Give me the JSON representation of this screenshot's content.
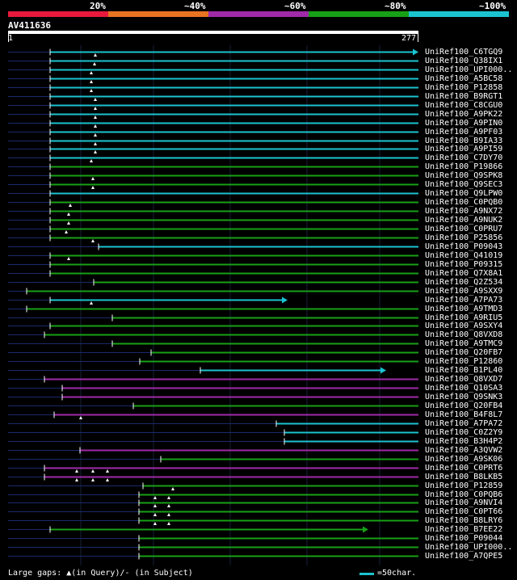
{
  "legend": {
    "colors": [
      "#e8193c",
      "#e87322",
      "#a02aa7",
      "#18a016",
      "#1bc3d0"
    ],
    "labels": [
      "20%",
      "~40%",
      "~60%",
      "~80%",
      "~100%"
    ]
  },
  "query": {
    "name": "AV411636",
    "start": "1",
    "end": "277"
  },
  "hits": [
    {
      "name": "UniRef100_C6TGQ9",
      "start": 62,
      "end": 518,
      "color": "#1bc3d0",
      "arrow": true,
      "marks": [
        118
      ]
    },
    {
      "name": "UniRef100_Q38IX1",
      "start": 62,
      "end": 518,
      "color": "#1bc3d0",
      "arrow": false,
      "marks": [
        117
      ]
    },
    {
      "name": "UniRef100_UPI000..",
      "start": 62,
      "end": 518,
      "color": "#1bc3d0",
      "arrow": false,
      "marks": [
        113
      ]
    },
    {
      "name": "UniRef100_A5BC58",
      "start": 62,
      "end": 518,
      "color": "#1bc3d0",
      "arrow": false,
      "marks": [
        113
      ]
    },
    {
      "name": "UniRef100_P12858",
      "start": 62,
      "end": 518,
      "color": "#1bc3d0",
      "arrow": false,
      "marks": [
        113
      ]
    },
    {
      "name": "UniRef100_B9RGT1",
      "start": 62,
      "end": 518,
      "color": "#1bc3d0",
      "arrow": false,
      "marks": [
        118
      ]
    },
    {
      "name": "UniRef100_C8CGU0",
      "start": 62,
      "end": 518,
      "color": "#1bc3d0",
      "arrow": false,
      "marks": [
        118
      ]
    },
    {
      "name": "UniRef100_A9PK22",
      "start": 62,
      "end": 518,
      "color": "#1bc3d0",
      "arrow": false,
      "marks": [
        118
      ]
    },
    {
      "name": "UniRef100_A9PIN0",
      "start": 62,
      "end": 518,
      "color": "#1bc3d0",
      "arrow": false,
      "marks": [
        118
      ]
    },
    {
      "name": "UniRef100_A9PF03",
      "start": 62,
      "end": 518,
      "color": "#1bc3d0",
      "arrow": false,
      "marks": [
        118
      ]
    },
    {
      "name": "UniRef100_B9IA33",
      "start": 62,
      "end": 518,
      "color": "#1bc3d0",
      "arrow": false,
      "marks": [
        118
      ]
    },
    {
      "name": "UniRef100_A9PI59",
      "start": 62,
      "end": 518,
      "color": "#1bc3d0",
      "arrow": false,
      "marks": [
        118
      ]
    },
    {
      "name": "UniRef100_C7DY70",
      "start": 62,
      "end": 518,
      "color": "#1bc3d0",
      "arrow": false,
      "marks": [
        113
      ]
    },
    {
      "name": "UniRef100_P19866",
      "start": 62,
      "end": 518,
      "color": "#18a016",
      "arrow": false,
      "marks": []
    },
    {
      "name": "UniRef100_Q9SPK8",
      "start": 62,
      "end": 518,
      "color": "#18a016",
      "arrow": false,
      "marks": [
        115
      ]
    },
    {
      "name": "UniRef100_Q9SEC3",
      "start": 62,
      "end": 518,
      "color": "#18a016",
      "arrow": false,
      "marks": [
        115
      ]
    },
    {
      "name": "UniRef100_Q9LPW0",
      "start": 62,
      "end": 518,
      "color": "#1bc3d0",
      "arrow": false,
      "marks": []
    },
    {
      "name": "UniRef100_C0PQB0",
      "start": 62,
      "end": 518,
      "color": "#18a016",
      "arrow": false,
      "marks": [
        87
      ]
    },
    {
      "name": "UniRef100_A9NX72",
      "start": 62,
      "end": 518,
      "color": "#18a016",
      "arrow": false,
      "marks": [
        85
      ]
    },
    {
      "name": "UniRef100_A9NUK2",
      "start": 62,
      "end": 518,
      "color": "#18a016",
      "arrow": false,
      "marks": [
        85
      ]
    },
    {
      "name": "UniRef100_C0PRU7",
      "start": 62,
      "end": 518,
      "color": "#18a016",
      "arrow": false,
      "marks": [
        82
      ]
    },
    {
      "name": "UniRef100_P25856",
      "start": 62,
      "end": 518,
      "color": "#18a016",
      "arrow": false,
      "marks": [
        115
      ]
    },
    {
      "name": "UniRef100_P09043",
      "start": 122,
      "end": 518,
      "color": "#1bc3d0",
      "arrow": false,
      "marks": []
    },
    {
      "name": "UniRef100_Q41019",
      "start": 62,
      "end": 518,
      "color": "#18a016",
      "arrow": false,
      "marks": [
        85
      ]
    },
    {
      "name": "UniRef100_P09315",
      "start": 62,
      "end": 518,
      "color": "#18a016",
      "arrow": false,
      "marks": []
    },
    {
      "name": "UniRef100_Q7X8A1",
      "start": 62,
      "end": 518,
      "color": "#18a016",
      "arrow": false,
      "marks": []
    },
    {
      "name": "UniRef100_Q2Z534",
      "start": 116,
      "end": 518,
      "color": "#18a016",
      "arrow": false,
      "marks": []
    },
    {
      "name": "UniRef100_A9SXX9",
      "start": 33,
      "end": 518,
      "color": "#18a016",
      "arrow": false,
      "marks": []
    },
    {
      "name": "UniRef100_A7PA73",
      "start": 62,
      "end": 356,
      "color": "#1bc3d0",
      "arrow": true,
      "marks": [
        113
      ]
    },
    {
      "name": "UniRef100_A9TMD3",
      "start": 33,
      "end": 518,
      "color": "#18a016",
      "arrow": false,
      "marks": []
    },
    {
      "name": "UniRef100_A9RIU5",
      "start": 139,
      "end": 518,
      "color": "#18a016",
      "arrow": false,
      "marks": []
    },
    {
      "name": "UniRef100_A9SXY4",
      "start": 62,
      "end": 518,
      "color": "#18a016",
      "arrow": false,
      "marks": []
    },
    {
      "name": "UniRef100_Q8VXD8",
      "start": 55,
      "end": 518,
      "color": "#18a016",
      "arrow": false,
      "marks": []
    },
    {
      "name": "UniRef100_A9TMC9",
      "start": 139,
      "end": 518,
      "color": "#18a016",
      "arrow": false,
      "marks": []
    },
    {
      "name": "UniRef100_Q20FB7",
      "start": 187,
      "end": 518,
      "color": "#18a016",
      "arrow": false,
      "marks": []
    },
    {
      "name": "UniRef100_P12860",
      "start": 173,
      "end": 518,
      "color": "#18a016",
      "arrow": false,
      "marks": []
    },
    {
      "name": "UniRef100_B1PL40",
      "start": 248,
      "end": 478,
      "color": "#1bc3d0",
      "arrow": true,
      "marks": []
    },
    {
      "name": "UniRef100_Q8VXD7",
      "start": 55,
      "end": 518,
      "color": "#a02aa7",
      "arrow": false,
      "marks": []
    },
    {
      "name": "UniRef100_Q10SA3",
      "start": 77,
      "end": 518,
      "color": "#a02aa7",
      "arrow": false,
      "marks": []
    },
    {
      "name": "UniRef100_Q9SNK3",
      "start": 77,
      "end": 518,
      "color": "#a02aa7",
      "arrow": false,
      "marks": []
    },
    {
      "name": "UniRef100_Q20FB4",
      "start": 165,
      "end": 518,
      "color": "#18a016",
      "arrow": false,
      "marks": []
    },
    {
      "name": "UniRef100_B4F8L7",
      "start": 67,
      "end": 518,
      "color": "#a02aa7",
      "arrow": false,
      "marks": [
        100
      ]
    },
    {
      "name": "UniRef100_A7PA72",
      "start": 342,
      "end": 518,
      "color": "#1bc3d0",
      "arrow": false,
      "marks": []
    },
    {
      "name": "UniRef100_C0Z2Y9",
      "start": 352,
      "end": 518,
      "color": "#1bc3d0",
      "arrow": false,
      "marks": []
    },
    {
      "name": "UniRef100_B3H4P2",
      "start": 352,
      "end": 518,
      "color": "#1bc3d0",
      "arrow": false,
      "marks": []
    },
    {
      "name": "UniRef100_A3QVW2",
      "start": 99,
      "end": 518,
      "color": "#a02aa7",
      "arrow": false,
      "marks": []
    },
    {
      "name": "UniRef100_A9SK06",
      "start": 199,
      "end": 518,
      "color": "#18a016",
      "arrow": false,
      "marks": []
    },
    {
      "name": "UniRef100_C0PRT6",
      "start": 55,
      "end": 518,
      "color": "#a02aa7",
      "arrow": false,
      "marks": [
        95,
        115,
        133
      ]
    },
    {
      "name": "UniRef100_B8LKB5",
      "start": 55,
      "end": 518,
      "color": "#a02aa7",
      "arrow": false,
      "marks": [
        95,
        115,
        133
      ]
    },
    {
      "name": "UniRef100_P12859",
      "start": 177,
      "end": 518,
      "color": "#18a016",
      "arrow": false,
      "marks": [
        214
      ]
    },
    {
      "name": "UniRef100_C0PQB6",
      "start": 172,
      "end": 518,
      "color": "#18a016",
      "arrow": false,
      "marks": [
        192,
        209
      ]
    },
    {
      "name": "UniRef100_A9NVI4",
      "start": 172,
      "end": 518,
      "color": "#18a016",
      "arrow": false,
      "marks": [
        192,
        209
      ]
    },
    {
      "name": "UniRef100_C0PT66",
      "start": 172,
      "end": 518,
      "color": "#18a016",
      "arrow": false,
      "marks": [
        192,
        209
      ]
    },
    {
      "name": "UniRef100_B8LRY6",
      "start": 172,
      "end": 518,
      "color": "#18a016",
      "arrow": false,
      "marks": [
        192,
        209
      ]
    },
    {
      "name": "UniRef100_B7EE22",
      "start": 62,
      "end": 456,
      "color": "#18a016",
      "arrow": true,
      "marks": []
    },
    {
      "name": "UniRef100_P09044",
      "start": 172,
      "end": 518,
      "color": "#18a016",
      "arrow": false,
      "marks": []
    },
    {
      "name": "UniRef100_UPI000..",
      "start": 172,
      "end": 518,
      "color": "#18a016",
      "arrow": false,
      "marks": []
    },
    {
      "name": "UniRef100_A7QPE5",
      "start": 172,
      "end": 518,
      "color": "#18a016",
      "arrow": false,
      "marks": []
    }
  ],
  "footer": {
    "text": "Large gaps: ▲(in Query)/- (in Subject)",
    "scale": "=50char."
  }
}
